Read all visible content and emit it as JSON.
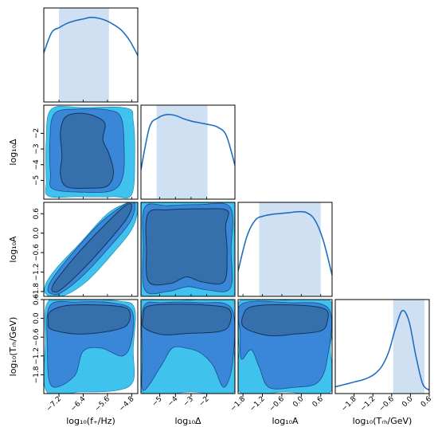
{
  "chart_data": {
    "type": "corner",
    "parameters": [
      {
        "key": "fstar",
        "label": "log₁₀(f₊/Hz)",
        "range": [
          -7.7,
          -4.6
        ],
        "ticks": [
          -7.2,
          -6.4,
          -5.6,
          -4.8
        ],
        "tick_labels": [
          "−7.2",
          "−6.4",
          "−5.6",
          "−4.8"
        ],
        "band": [
          -7.2,
          -5.55
        ],
        "pdf": [
          0.58,
          0.82,
          0.88,
          0.93,
          0.96,
          0.98,
          1.0,
          0.99,
          0.96,
          0.91,
          0.84,
          0.72,
          0.55
        ]
      },
      {
        "key": "delta",
        "label": "log₁₀Δ",
        "range": [
          -6.2,
          -0.2
        ],
        "ticks": [
          -5,
          -4,
          -3,
          -2
        ],
        "tick_labels": [
          "−5",
          "−4",
          "−3",
          "−2"
        ],
        "band": [
          -5.2,
          -1.95
        ],
        "pdf": [
          0.35,
          0.85,
          0.96,
          1.0,
          0.99,
          0.95,
          0.92,
          0.9,
          0.88,
          0.85,
          0.75,
          0.4
        ]
      },
      {
        "key": "A",
        "label": "log₁₀A",
        "range": [
          -1.95,
          0.95
        ],
        "ticks": [
          -1.8,
          -1.2,
          -0.6,
          0.0,
          0.6
        ],
        "tick_labels": [
          "−1.8",
          "−1.2",
          "−0.6",
          "0.0",
          "0.6"
        ],
        "band": [
          -1.3,
          0.6
        ],
        "pdf": [
          0.3,
          0.7,
          0.9,
          0.95,
          0.97,
          0.98,
          0.99,
          1.0,
          0.99,
          0.9,
          0.65,
          0.25
        ]
      },
      {
        "key": "Trh",
        "label": "log₁₀(Tᵣₕ/GeV)",
        "range": [
          -2.4,
          0.6
        ],
        "ticks": [
          -1.8,
          -1.2,
          -0.6,
          0.0,
          0.6
        ],
        "tick_labels": [
          "−1.8",
          "−1.2",
          "−0.6",
          "0.0",
          "0.6"
        ],
        "yticks": [
          -1.8,
          -1.2,
          -0.6,
          0.0,
          0.6
        ],
        "ytick_labels": [
          "−1.8",
          "−1.2",
          "−0.6",
          "0.0",
          "0.6"
        ],
        "band": [
          -0.55,
          0.45
        ],
        "pdf": [
          0.08,
          0.1,
          0.12,
          0.14,
          0.16,
          0.19,
          0.24,
          0.33,
          0.5,
          0.78,
          0.98,
          0.85,
          0.45,
          0.12,
          0.04
        ]
      }
    ],
    "contour_levels": [
      "outer",
      "middle",
      "inner"
    ],
    "colors": {
      "pdf_line": "#1f6fc0",
      "band": "#cfe0f3",
      "outer": "#3fc2ee",
      "middle": "#3a86d8",
      "inner": "#3570ad"
    }
  }
}
